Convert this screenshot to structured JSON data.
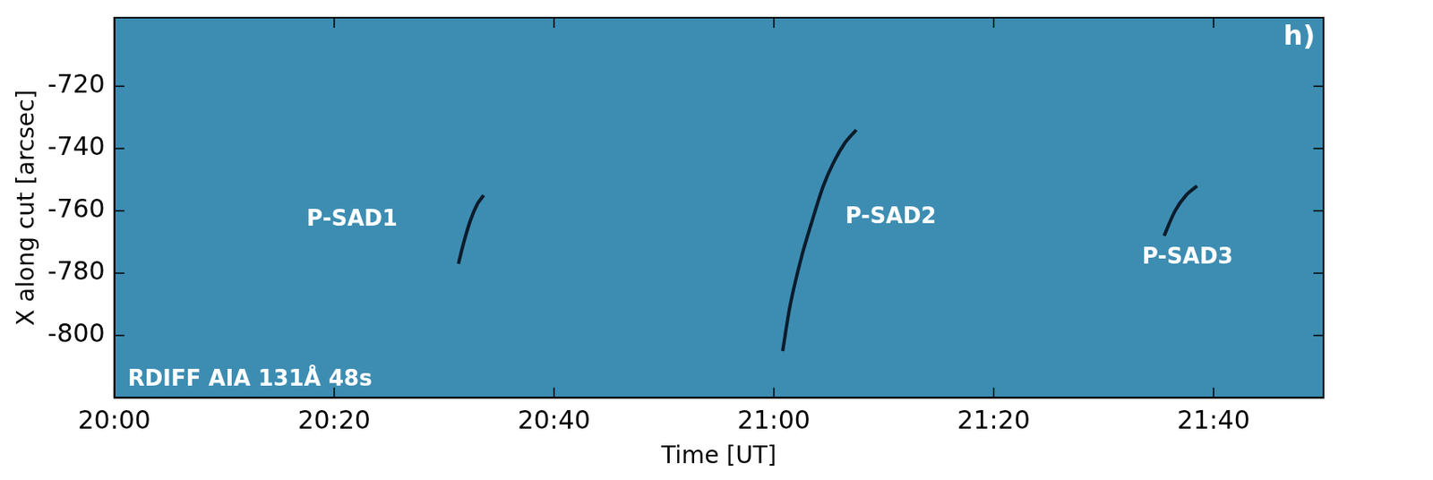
{
  "chart_data": {
    "type": "line",
    "x_label": "Time [UT]",
    "y_label": "X along cut [arcsec]",
    "inset_text": "RDIFF AIA 131Å 48s",
    "panel_label": "h)",
    "background_color": "#3d8db2",
    "xlim": [
      0,
      110
    ],
    "xticks": [
      {
        "value": 0,
        "label": "20:00"
      },
      {
        "value": 20,
        "label": "20:20"
      },
      {
        "value": 40,
        "label": "20:40"
      },
      {
        "value": 60,
        "label": "21:00"
      },
      {
        "value": 80,
        "label": "21:20"
      },
      {
        "value": 100,
        "label": "21:40"
      }
    ],
    "ylim": [
      -820,
      -698
    ],
    "yticks": [
      -800,
      -780,
      -760,
      -740,
      -720
    ],
    "grid": false,
    "series": [
      {
        "name": "P-SAD1",
        "color": "#0b1c2c",
        "label_at": [
          17.5,
          -763
        ],
        "x": [
          31.3,
          31.8,
          32.4,
          33.0,
          33.6
        ],
        "values": [
          -777,
          -770,
          -763,
          -758,
          -755
        ]
      },
      {
        "name": "P-SAD2",
        "color": "#0b1c2c",
        "label_at": [
          66.5,
          -762
        ],
        "x": [
          60.8,
          61.5,
          62.5,
          63.5,
          64.5,
          65.5,
          66.5,
          67.5
        ],
        "values": [
          -805,
          -790,
          -775,
          -763,
          -752,
          -744,
          -738,
          -734
        ]
      },
      {
        "name": "P-SAD3",
        "color": "#0b1c2c",
        "label_at": [
          93.5,
          -775
        ],
        "x": [
          95.5,
          96.5,
          97.5,
          98.5
        ],
        "values": [
          -768,
          -760,
          -755,
          -752
        ]
      }
    ]
  }
}
